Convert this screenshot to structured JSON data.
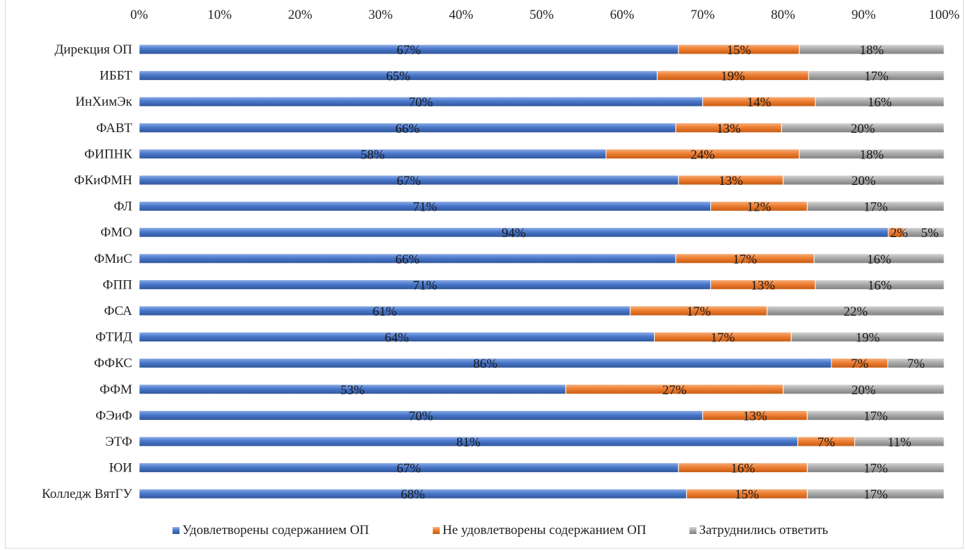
{
  "chart_data": {
    "type": "bar",
    "orientation": "horizontal",
    "stacked": "percent",
    "title": "",
    "x_ticks": [
      "0%",
      "10%",
      "20%",
      "30%",
      "40%",
      "50%",
      "60%",
      "70%",
      "80%",
      "90%",
      "100%"
    ],
    "xlim": [
      0,
      100
    ],
    "grid": false,
    "legend_position": "bottom",
    "categories": [
      "Дирекция ОП",
      "ИББТ",
      "ИнХимЭк",
      "ФАВТ",
      "ФИПНК",
      "ФКиФМН",
      "ФЛ",
      "ФМО",
      "ФМиС",
      "ФПП",
      "ФСА",
      "ФТИД",
      "ФФКС",
      "ФФМ",
      "ФЭиФ",
      "ЭТФ",
      "ЮИ",
      "Колледж ВятГУ"
    ],
    "series": [
      {
        "name": "Удовлетворены содержанием ОП",
        "color": "#4472c4",
        "values": [
          67,
          65,
          70,
          66,
          58,
          67,
          71,
          94,
          66,
          71,
          61,
          64,
          86,
          53,
          70,
          81,
          67,
          68
        ],
        "labels": [
          "67%",
          "65%",
          "70%",
          "66%",
          "58%",
          "67%",
          "71%",
          "94%",
          "66%",
          "71%",
          "61%",
          "64%",
          "86%",
          "53%",
          "70%",
          "81%",
          "67%",
          "68%"
        ]
      },
      {
        "name": "Не удовлетворены содержанием ОП",
        "color": "#ed7d31",
        "values": [
          15,
          19,
          14,
          13,
          24,
          13,
          12,
          2,
          17,
          13,
          17,
          17,
          7,
          27,
          13,
          7,
          16,
          15
        ],
        "labels": [
          "15%",
          "19%",
          "14%",
          "13%",
          "24%",
          "13%",
          "12%",
          "2%",
          "17%",
          "13%",
          "17%",
          "17%",
          "7%",
          "27%",
          "13%",
          "7%",
          "16%",
          "15%"
        ]
      },
      {
        "name": "Затруднились ответить",
        "color": "#a5a5a5",
        "values": [
          18,
          17,
          16,
          20,
          18,
          20,
          17,
          5,
          16,
          16,
          22,
          19,
          7,
          20,
          17,
          11,
          17,
          17
        ],
        "labels": [
          "18%",
          "17%",
          "16%",
          "20%",
          "18%",
          "20%",
          "17%",
          "5%",
          "16%",
          "16%",
          "22%",
          "19%",
          "7%",
          "20%",
          "17%",
          "11%",
          "17%",
          "17%"
        ]
      }
    ]
  }
}
